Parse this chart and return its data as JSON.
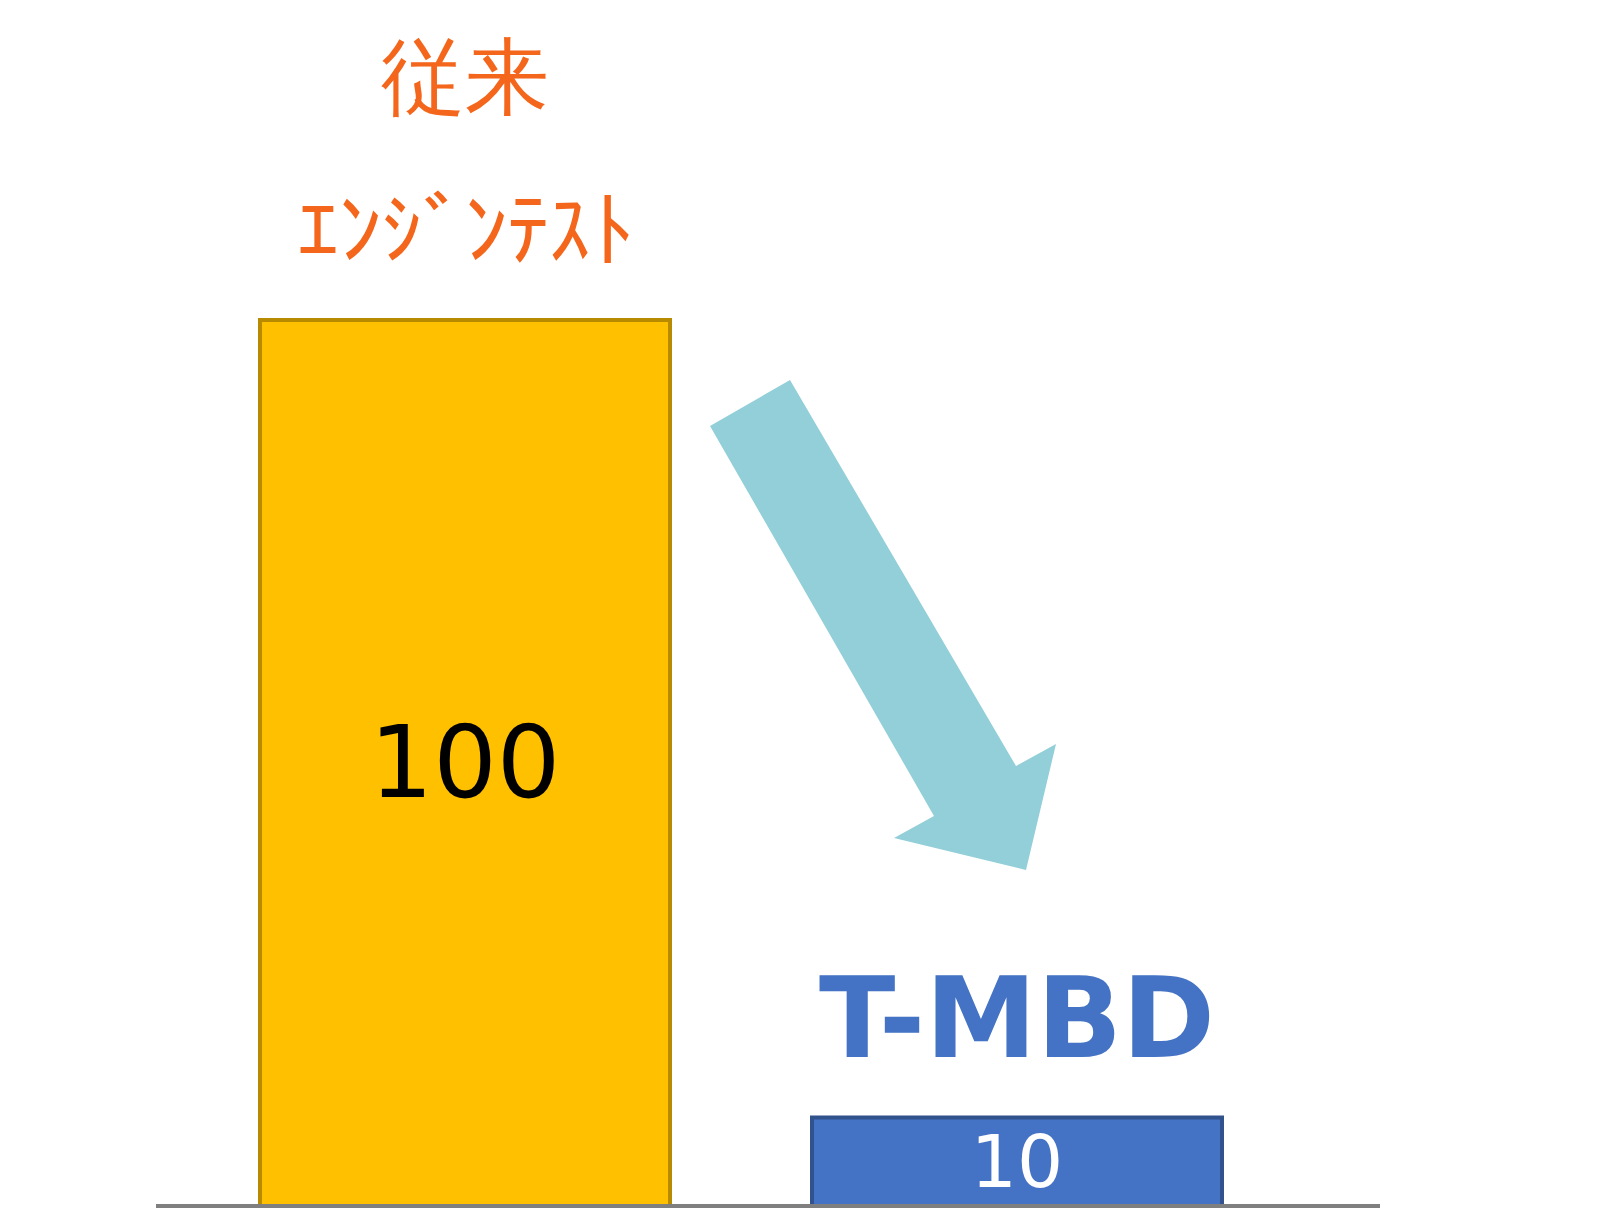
{
  "chart_data": {
    "type": "bar",
    "categories": [
      "従来ｴﾝｼﾞﾝﾃｽﾄ",
      "T-MBD"
    ],
    "values": [
      100,
      10
    ],
    "colors": [
      "#ffc000",
      "#4472c4"
    ],
    "data_labels": true
  }
}
